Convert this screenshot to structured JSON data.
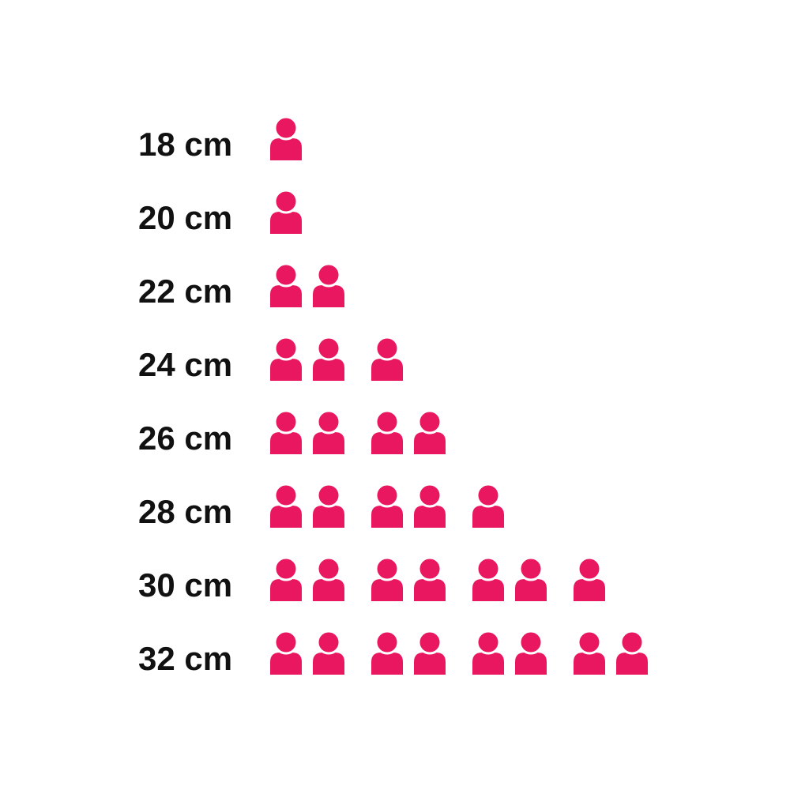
{
  "page": {
    "background_color": "#ffffff",
    "label_color": "#111111"
  },
  "chart_data": {
    "type": "bar",
    "variant": "pictogram",
    "orientation": "horizontal",
    "icon": "person-icon",
    "icon_color": "#e9175f",
    "unit_per_icon": 1,
    "icons_per_group": 2,
    "categories": [
      "18 cm",
      "20 cm",
      "22 cm",
      "24 cm",
      "26 cm",
      "28 cm",
      "30 cm",
      "32 cm"
    ],
    "values": [
      1,
      1,
      2,
      3,
      4,
      5,
      7,
      8
    ],
    "title": "",
    "xlabel": "",
    "ylabel": "",
    "legend": "none",
    "grid": false
  }
}
